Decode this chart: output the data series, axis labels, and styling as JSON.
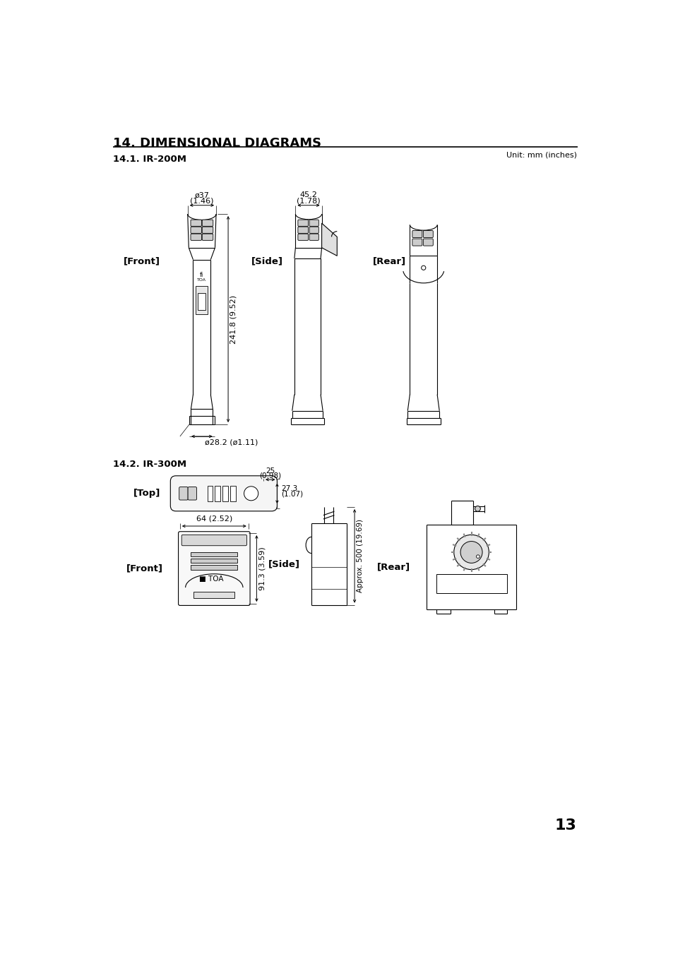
{
  "title": "14. DIMENSIONAL DIAGRAMS",
  "section1": "14.1. IR-200M",
  "section2": "14.2. IR-300M",
  "unit_label": "Unit: mm (inches)",
  "page_number": "13",
  "bg_color": "#ffffff",
  "ir200m": {
    "front_label": "[Front]",
    "side_label": "[Side]",
    "rear_label": "[Rear]",
    "dim_top_width": "ø37",
    "dim_top_width_inch": "(1.46)",
    "dim_side_width": "45.2",
    "dim_side_width_inch": "(1.78)",
    "dim_height": "241.8 (9.52)",
    "dim_bottom": "ø28.2 (ø1.11)"
  },
  "ir300m": {
    "top_label": "[Top]",
    "front_label": "[Front]",
    "side_label": "[Side]",
    "rear_label": "[Rear]",
    "dim_top1": "25",
    "dim_top1_inch": "(0.98)",
    "dim_top2": "27.3",
    "dim_top2_inch": "(1.07)",
    "dim_front_width": "64 (2.52)",
    "dim_front_height": "91.3 (3.59)",
    "dim_side_height": "Approx. 500 (19.69)"
  }
}
